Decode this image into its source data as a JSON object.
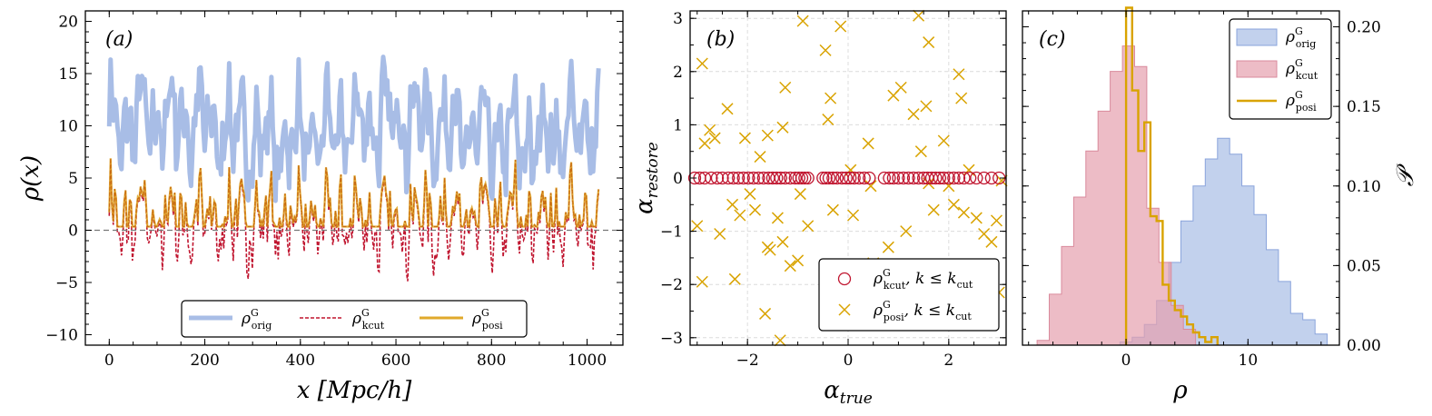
{
  "chart_data": [
    {
      "type": "line",
      "panel_label": "(a)",
      "xlabel": "x [Mpc/h]",
      "ylabel": "ρ(x)",
      "xlim": [
        -50,
        1075
      ],
      "ylim": [
        -11,
        21
      ],
      "xticks": [
        "0",
        "200",
        "400",
        "600",
        "800",
        "1000"
      ],
      "yticks": [
        "−10",
        "−5",
        "0",
        "5",
        "10",
        "15",
        "20"
      ],
      "reference_line": {
        "y": 0,
        "style": "dashed"
      },
      "legend_position": "bottom-center",
      "colors": {
        "orig": "#a8bde6",
        "kcut": "#c0152f",
        "posi": "#e0a92b"
      },
      "series": [
        {
          "name": "ρ^G_orig",
          "sym": "ρ",
          "sup": "G",
          "sub": "orig",
          "style": "solid-thick",
          "mean": 9.5,
          "range": [
            1,
            17
          ]
        },
        {
          "name": "ρ^G_kcut",
          "sym": "ρ",
          "sup": "G",
          "sub": "kcut",
          "style": "dashed",
          "mean": 0.5,
          "range": [
            -7,
            8
          ]
        },
        {
          "name": "ρ^G_posi",
          "sym": "ρ",
          "sup": "G",
          "sub": "posi",
          "style": "solid",
          "mean": 1.5,
          "range": [
            0,
            8
          ]
        }
      ]
    },
    {
      "type": "scatter",
      "panel_label": "(b)",
      "xlabel": "α",
      "xlabel_sub": "true",
      "ylabel": "α",
      "ylabel_sub": "restore",
      "xlim": [
        -3.14,
        3.14
      ],
      "ylim": [
        -3.14,
        3.14
      ],
      "xticks": [
        "−2",
        "0",
        "2"
      ],
      "yticks": [
        "−3",
        "−2",
        "−1",
        "0",
        "1",
        "2",
        "3"
      ],
      "grid": true,
      "legend_position": "bottom-right",
      "series": [
        {
          "name": "ρ^G_kcut, k ≤ k_cut",
          "sym": "ρ",
          "sup": "G",
          "sub": "kcut",
          "cond": ", k ≤ k",
          "cond_sub": "cut",
          "marker": "circle",
          "color": "#c0152f",
          "x": [
            -3.05,
            -2.95,
            -2.85,
            -2.72,
            -2.6,
            -2.5,
            -2.38,
            -2.28,
            -2.18,
            -2.08,
            -1.98,
            -1.88,
            -1.78,
            -1.68,
            -1.58,
            -1.5,
            -1.42,
            -1.34,
            -1.25,
            -1.15,
            -1.05,
            -0.98,
            -0.92,
            -0.86,
            -0.8,
            -0.5,
            -0.44,
            -0.38,
            -0.3,
            -0.22,
            -0.12,
            -0.04,
            0.04,
            0.12,
            0.22,
            0.32,
            0.42,
            0.72,
            0.82,
            0.9,
            1.0,
            1.1,
            1.2,
            1.3,
            1.4,
            1.5,
            1.58,
            1.66,
            1.74,
            1.82,
            1.9,
            2.0,
            2.1,
            2.2,
            2.3,
            2.42,
            2.55,
            2.7,
            2.85,
            3.0
          ],
          "y": [
            0,
            0,
            0,
            0,
            0,
            0,
            0,
            0,
            0,
            0,
            0,
            0,
            0,
            0,
            0,
            0,
            0,
            0,
            0,
            0,
            0,
            0,
            0,
            0,
            0,
            0,
            0,
            0,
            0,
            0,
            0,
            0,
            0,
            0,
            0,
            0,
            0,
            0,
            0,
            0,
            0,
            0,
            0,
            0,
            0,
            0,
            0,
            0,
            0,
            0,
            0,
            0,
            0,
            0,
            0,
            0,
            0,
            0,
            0,
            0
          ]
        },
        {
          "name": "ρ^G_posi, k ≤ k_cut",
          "sym": "ρ",
          "sup": "G",
          "sub": "posi",
          "cond": ", k ≤ k",
          "cond_sub": "cut",
          "marker": "x",
          "color": "#d9a300",
          "x": [
            -2.9,
            -3.0,
            -2.9,
            -2.75,
            -2.65,
            -2.55,
            -2.4,
            -2.3,
            -2.25,
            -2.15,
            -2.05,
            -1.95,
            -1.85,
            -1.75,
            -1.65,
            -1.6,
            -1.55,
            -1.35,
            -1.3,
            -1.25,
            -1.15,
            -1.0,
            -0.9,
            -0.8,
            -0.45,
            -0.4,
            -0.35,
            -0.3,
            -0.15,
            0.05,
            0.1,
            0.4,
            0.45,
            0.8,
            0.9,
            1.05,
            1.15,
            1.3,
            1.4,
            1.45,
            1.55,
            1.6,
            1.7,
            1.8,
            1.9,
            2.0,
            2.1,
            2.2,
            2.3,
            2.4,
            2.55,
            2.7,
            2.85,
            3.0,
            3.05,
            -2.85,
            -1.3,
            -1.6,
            0.5,
            2.25,
            0.9,
            1.6,
            -0.95,
            -1.4,
            2.95
          ],
          "y": [
            2.15,
            -0.9,
            -1.95,
            0.9,
            0.75,
            -1.05,
            1.3,
            -0.5,
            -1.9,
            -0.7,
            0.75,
            -0.3,
            -0.6,
            0.4,
            -2.55,
            0.8,
            -1.35,
            -3.05,
            -1.2,
            1.7,
            -1.65,
            -1.55,
            2.95,
            -0.9,
            2.4,
            1.1,
            1.5,
            -0.6,
            2.85,
            0.15,
            -0.7,
            0.65,
            -0.15,
            -1.3,
            -2.1,
            1.7,
            -1.0,
            1.2,
            3.05,
            0.5,
            1.35,
            2.55,
            -0.6,
            -2.3,
            0.7,
            -0.15,
            -0.5,
            1.95,
            -0.65,
            0.15,
            -0.75,
            -1.05,
            -1.2,
            -2.15,
            -0.05,
            0.65,
            0.95,
            -1.3,
            -1.6,
            1.5,
            1.55,
            -0.1,
            -0.3,
            -0.75,
            -0.8
          ]
        }
      ]
    },
    {
      "type": "histogram",
      "panel_label": "(c)",
      "xlabel": "ρ",
      "ylabel": "𝒫",
      "xlim": [
        -8.5,
        17.5
      ],
      "ylim": [
        0,
        0.21
      ],
      "xticks": [
        "0",
        "10"
      ],
      "yticks": [
        "0.00",
        "0.05",
        "0.10",
        "0.15",
        "0.20"
      ],
      "legend_position": "top-right",
      "series": [
        {
          "name": "ρ^G_orig",
          "sym": "ρ",
          "sup": "G",
          "sub": "orig",
          "style": "filled",
          "color": "#a8bde6",
          "edges": [
            -0.5,
            0.5,
            1.5,
            2.5,
            3.5,
            4.5,
            5.5,
            6.5,
            7.5,
            8.5,
            9.5,
            10.5,
            11.5,
            12.5,
            13.5,
            14.5,
            15.5,
            16.5
          ],
          "values": [
            0.002,
            0.005,
            0.013,
            0.028,
            0.052,
            0.078,
            0.1,
            0.117,
            0.13,
            0.12,
            0.1,
            0.082,
            0.06,
            0.04,
            0.02,
            0.016,
            0.007
          ]
        },
        {
          "name": "ρ^G_kcut",
          "sym": "ρ",
          "sup": "G",
          "sub": "kcut",
          "style": "filled",
          "color": "#e6a0ae",
          "edges": [
            -7.3,
            -6.3,
            -5.3,
            -4.3,
            -3.3,
            -2.3,
            -1.3,
            -0.3,
            0.7,
            1.7,
            2.7,
            3.7,
            4.7,
            5.7
          ],
          "values": [
            0.003,
            0.032,
            0.062,
            0.093,
            0.122,
            0.147,
            0.172,
            0.188,
            0.175,
            0.086,
            0.052,
            0.025,
            0.01
          ]
        },
        {
          "name": "ρ^G_posi",
          "sym": "ρ",
          "sup": "G",
          "sub": "posi",
          "style": "step",
          "color": "#d9a300",
          "edges": [
            0,
            0.5,
            1,
            1.5,
            2,
            2.5,
            3,
            3.5,
            4,
            4.5,
            5,
            5.5,
            6,
            6.5,
            7,
            7.5
          ],
          "values": [
            0.216,
            0.16,
            0.122,
            0.14,
            0.081,
            0.078,
            0.038,
            0.028,
            0.022,
            0.018,
            0.013,
            0.008,
            0.005,
            0.002,
            0.005
          ]
        }
      ]
    }
  ]
}
